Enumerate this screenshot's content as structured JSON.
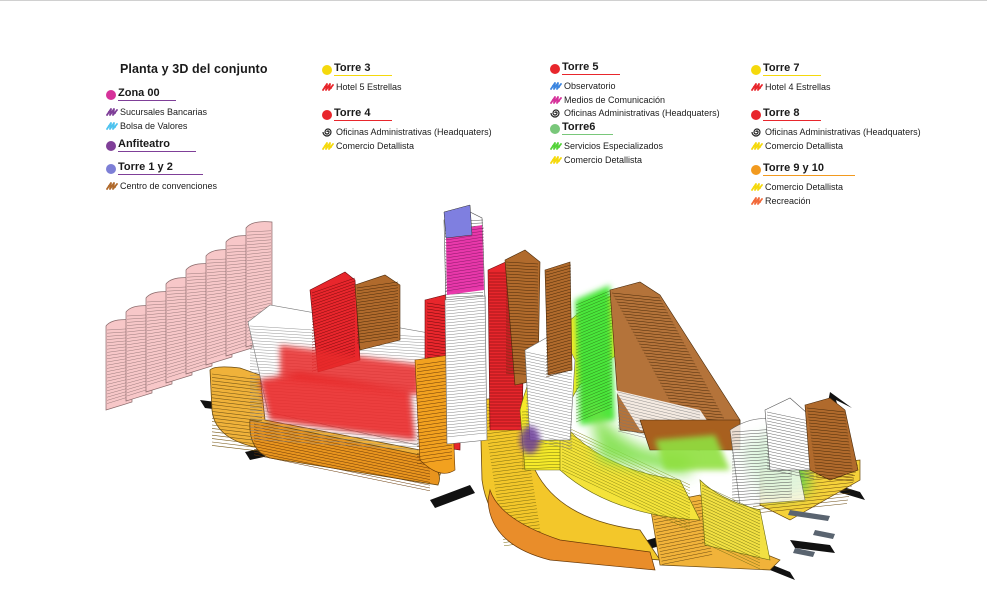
{
  "title": "Planta y 3D del conjunto",
  "colors": {
    "pink_magenta": "#d6329a",
    "purple": "#7f3f98",
    "cyan": "#4fc3ef",
    "violet": "#7d7fd6",
    "brown": "#b06a2c",
    "yellow": "#f5d90c",
    "red": "#e8262c",
    "blue": "#3d86e0",
    "green": "#79c77a",
    "light_green": "#55d33a",
    "orange": "#f29a1f",
    "coral": "#f26a3b",
    "salmon_pink": "#f6c2c4"
  },
  "legend_groups": [
    {
      "id": "zona00",
      "title": "Zona 00",
      "dot": "pink_magenta",
      "line": "purple",
      "items": [
        {
          "label": "Sucursales Bancarias",
          "icon": "scribble-icon",
          "color": "purple"
        },
        {
          "label": "Bolsa de Valores",
          "icon": "scribble-icon",
          "color": "cyan"
        }
      ]
    },
    {
      "id": "anfiteatro",
      "title": "Anfiteatro",
      "dot": "purple",
      "line": "purple",
      "items": []
    },
    {
      "id": "torre12",
      "title": "Torre 1 y 2",
      "dot": "violet",
      "line": "purple",
      "items": [
        {
          "label": "Centro de convenciones",
          "icon": "scribble-icon",
          "color": "brown"
        }
      ]
    },
    {
      "id": "torre3",
      "title": "Torre 3",
      "dot": "yellow",
      "line": "yellow",
      "items": [
        {
          "label": "Hotel 5 Estrellas",
          "icon": "scribble-icon",
          "color": "red"
        }
      ]
    },
    {
      "id": "torre4",
      "title": "Torre 4",
      "dot": "red",
      "line": "red",
      "items": [
        {
          "label": "Oficinas Administrativas (Headquaters)",
          "icon": "spiral-icon",
          "color": "#222222"
        },
        {
          "label": "Comercio Detallista",
          "icon": "scribble-icon",
          "color": "yellow"
        }
      ]
    },
    {
      "id": "torre5",
      "title": "Torre 5",
      "dot": "red",
      "line": "red",
      "items": [
        {
          "label": "Observatorio",
          "icon": "scribble-icon",
          "color": "blue"
        },
        {
          "label": "Medios de Comunicación",
          "icon": "scribble-icon",
          "color": "pink_magenta"
        },
        {
          "label": "Oficinas Administrativas (Headquaters)",
          "icon": "spiral-icon",
          "color": "#222222"
        }
      ]
    },
    {
      "id": "torre6",
      "title": "Torre6",
      "dot": "green",
      "line": "green",
      "items": [
        {
          "label": "Servicios Especializados",
          "icon": "scribble-icon",
          "color": "light_green"
        },
        {
          "label": "Comercio Detallista",
          "icon": "scribble-icon",
          "color": "yellow"
        }
      ]
    },
    {
      "id": "torre7",
      "title": "Torre 7",
      "dot": "yellow",
      "line": "yellow",
      "items": [
        {
          "label": "Hotel 4 Estrellas",
          "icon": "scribble-icon",
          "color": "red"
        }
      ]
    },
    {
      "id": "torre8",
      "title": "Torre 8",
      "dot": "red",
      "line": "red",
      "items": [
        {
          "label": "Oficinas Administrativas (Headquaters)",
          "icon": "spiral-icon",
          "color": "#222222"
        },
        {
          "label": "Comercio Detallista",
          "icon": "scribble-icon",
          "color": "yellow"
        }
      ]
    },
    {
      "id": "torre910",
      "title": "Torre 9 y 10",
      "dot": "orange",
      "line": "orange",
      "items": [
        {
          "label": "Comercio Detallista",
          "icon": "scribble-icon",
          "color": "yellow"
        },
        {
          "label": "Recreación",
          "icon": "scribble-icon",
          "color": "coral"
        }
      ]
    }
  ]
}
